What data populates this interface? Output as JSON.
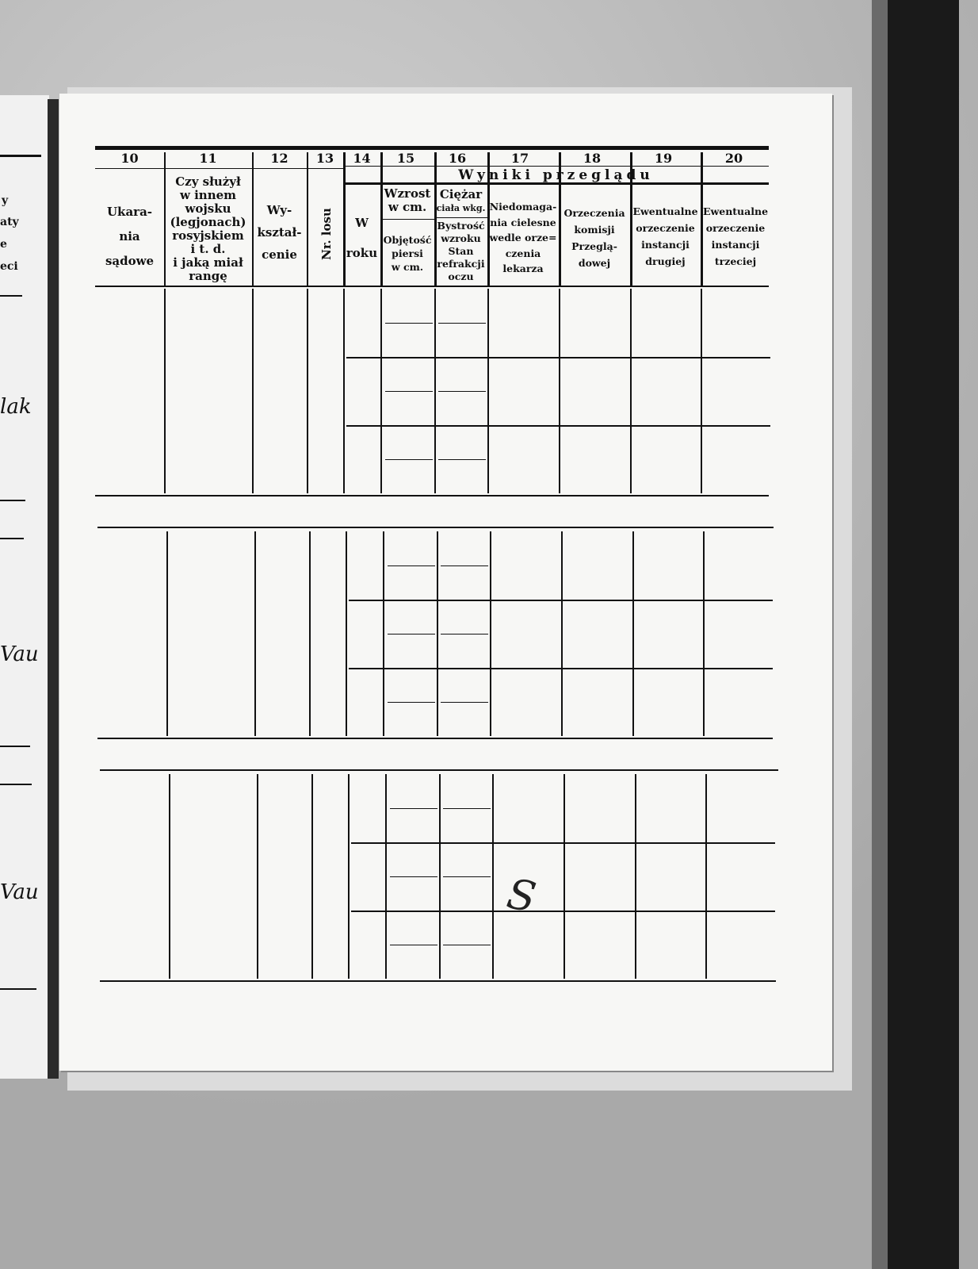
{
  "left_page": {
    "header_fragments": [
      "y",
      "aty",
      "e",
      "eci"
    ],
    "handwriting": [
      "lak",
      "Vau",
      "Vau"
    ]
  },
  "table": {
    "column_numbers": [
      "10",
      "11",
      "12",
      "13",
      "14",
      "15",
      "16",
      "17",
      "18",
      "19",
      "20"
    ],
    "group_title": "Wyniki przeglądu",
    "headers": {
      "c10": "Ukara-\nnia\nsądowe",
      "c11": "Czy służył\nw innem\nwojsku\n(legjonach)\nrosyjskiem\ni t. d.\ni jaką miał\nrangę",
      "c12": "Wy-\nkształ-\ncenie",
      "c13": "Nr. losu",
      "c14": "W\n\nroku",
      "c15_top": "Wzrost\nw cm.",
      "c15_bottom": "Objętość\npiersi\nw cm.",
      "c16_top": "Ciężar",
      "c16_top_small": "ciała wkg.",
      "c16_bottom": "Bystrość\nwzroku\nStan\nrefrakcji\noczu",
      "c17": "Niedomaga-\nnia cielesne\nwedle orze=\nczenia\nlekarza",
      "c18": "Orzeczenia\nkomisji\nPrzeglą-\ndowej",
      "c19": "Ewentualne\norzeczenie\ninstancji\ndrugiej",
      "c20": "Ewentualne\norzeczenie\ninstancji\ntrzeciej"
    },
    "record_blocks": 3,
    "handwritten_mark": "S"
  }
}
